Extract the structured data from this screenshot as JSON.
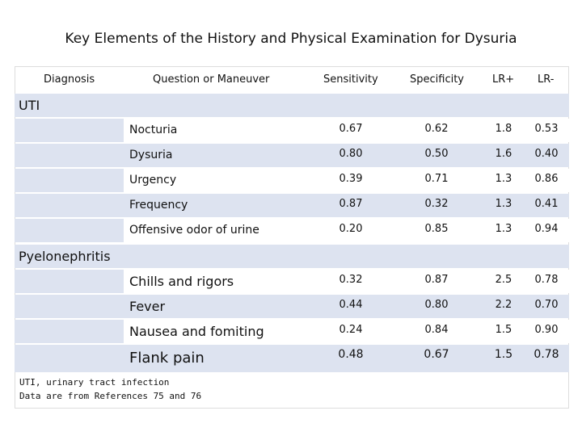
{
  "title": "Key Elements of the History and Physical Examination for Dysuria",
  "headers": {
    "diagnosis": "Diagnosis",
    "question": "Question or Maneuver",
    "sensitivity": "Sensitivity",
    "specificity": "Specificity",
    "lr_pos": "LR+",
    "lr_neg": "LR-"
  },
  "sections": [
    {
      "name": "UTI",
      "rows": [
        {
          "q": "Nocturia",
          "sens": "0.67",
          "spec": "0.62",
          "lrp": "1.8",
          "lrn": "0.53"
        },
        {
          "q": "Dysuria",
          "sens": "0.80",
          "spec": "0.50",
          "lrp": "1.6",
          "lrn": "0.40"
        },
        {
          "q": "Urgency",
          "sens": "0.39",
          "spec": "0.71",
          "lrp": "1.3",
          "lrn": "0.86"
        },
        {
          "q": "Frequency",
          "sens": "0.87",
          "spec": "0.32",
          "lrp": "1.3",
          "lrn": "0.41"
        },
        {
          "q": "Offensive odor of urine",
          "sens": "0.20",
          "spec": "0.85",
          "lrp": "1.3",
          "lrn": "0.94"
        }
      ]
    },
    {
      "name": "Pyelonephritis",
      "rows": [
        {
          "q": "Chills and rigors",
          "sens": "0.32",
          "spec": "0.87",
          "lrp": "2.5",
          "lrn": "0.78"
        },
        {
          "q": "Fever",
          "sens": "0.44",
          "spec": "0.80",
          "lrp": "2.2",
          "lrn": "0.70"
        },
        {
          "q": "Nausea and fomiting",
          "sens": "0.24",
          "spec": "0.84",
          "lrp": "1.5",
          "lrn": "0.90"
        },
        {
          "q": "Flank pain",
          "sens": "0.48",
          "spec": "0.67",
          "lrp": "1.5",
          "lrn": "0.78"
        }
      ]
    }
  ],
  "footnotes": {
    "line1": "UTI, urinary tract infection",
    "line2": "Data are from References 75 and 76"
  }
}
